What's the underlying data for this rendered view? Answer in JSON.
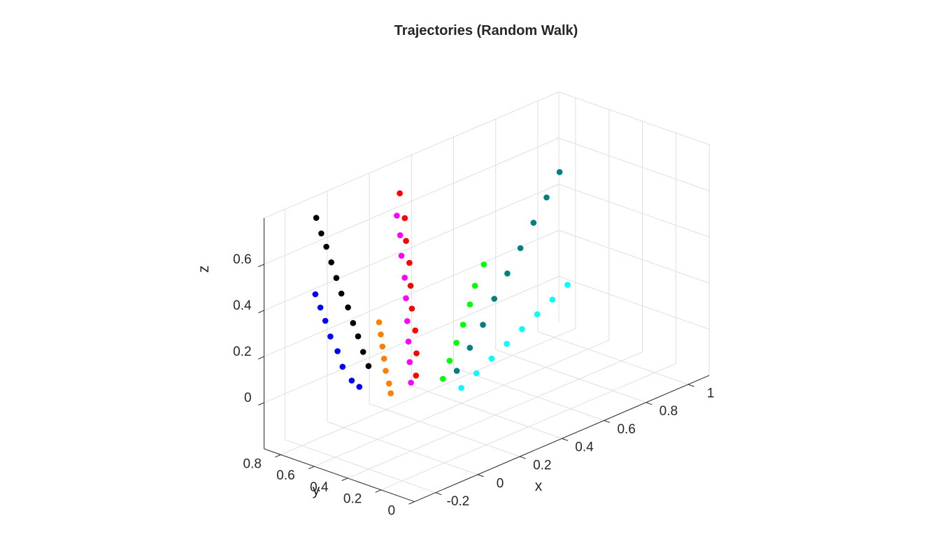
{
  "chart_data": {
    "type": "scatter",
    "title": "Trajectories (Random Walk)",
    "xlabel": "x",
    "ylabel": "y",
    "zlabel": "z",
    "xlim": [
      -0.3,
      1.1
    ],
    "ylim": [
      0,
      0.9
    ],
    "zlim": [
      -0.2,
      0.8
    ],
    "xticks": [
      "-0.2",
      "0",
      "0.2",
      "0.4",
      "0.6",
      "0.8",
      "1"
    ],
    "yticks": [
      "0",
      "0.2",
      "0.4",
      "0.6",
      "0.8"
    ],
    "zticks": [
      "0",
      "0.2",
      "0.4",
      "0.6"
    ],
    "grid": true,
    "series": [
      {
        "color": "#000000",
        "points": [
          [
            -0.05,
            0.59,
            0.14
          ],
          [
            -0.06,
            0.61,
            0.2
          ],
          [
            -0.06,
            0.64,
            0.26
          ],
          [
            -0.06,
            0.67,
            0.31
          ],
          [
            -0.06,
            0.7,
            0.37
          ],
          [
            -0.06,
            0.74,
            0.42
          ],
          [
            -0.06,
            0.77,
            0.48
          ],
          [
            -0.06,
            0.8,
            0.54
          ],
          [
            -0.06,
            0.83,
            0.6
          ],
          [
            -0.06,
            0.86,
            0.65
          ],
          [
            -0.06,
            0.89,
            0.71
          ]
        ]
      },
      {
        "color": "#0000ff",
        "points": [
          [
            -0.07,
            0.62,
            0.05
          ],
          [
            -0.09,
            0.64,
            0.08
          ],
          [
            -0.11,
            0.67,
            0.14
          ],
          [
            -0.11,
            0.7,
            0.2
          ],
          [
            -0.12,
            0.73,
            0.26
          ],
          [
            -0.12,
            0.76,
            0.32
          ],
          [
            -0.12,
            0.79,
            0.37
          ],
          [
            -0.12,
            0.82,
            0.42
          ]
        ]
      },
      {
        "color": "#ff8000",
        "points": [
          [
            0.0,
            0.52,
            0.02
          ],
          [
            0.0,
            0.53,
            0.06
          ],
          [
            0.0,
            0.55,
            0.11
          ],
          [
            0.0,
            0.56,
            0.16
          ],
          [
            0.0,
            0.57,
            0.21
          ],
          [
            0.0,
            0.58,
            0.26
          ],
          [
            0.0,
            0.59,
            0.31
          ]
        ]
      },
      {
        "color": "#ff0000",
        "points": [
          [
            0.12,
            0.52,
            0.05
          ],
          [
            0.13,
            0.53,
            0.14
          ],
          [
            0.14,
            0.55,
            0.23
          ],
          [
            0.14,
            0.57,
            0.32
          ],
          [
            0.15,
            0.59,
            0.41
          ],
          [
            0.16,
            0.61,
            0.5
          ],
          [
            0.16,
            0.63,
            0.59
          ],
          [
            0.17,
            0.65,
            0.68
          ],
          [
            0.17,
            0.68,
            0.78
          ]
        ]
      },
      {
        "color": "#ff00ff",
        "points": [
          [
            0.08,
            0.5,
            0.04
          ],
          [
            0.09,
            0.52,
            0.12
          ],
          [
            0.1,
            0.54,
            0.2
          ],
          [
            0.11,
            0.56,
            0.28
          ],
          [
            0.12,
            0.58,
            0.37
          ],
          [
            0.13,
            0.6,
            0.45
          ],
          [
            0.13,
            0.62,
            0.54
          ],
          [
            0.14,
            0.64,
            0.62
          ],
          [
            0.14,
            0.66,
            0.7
          ]
        ]
      },
      {
        "color": "#00ff00",
        "points": [
          [
            0.2,
            0.46,
            0.02
          ],
          [
            0.24,
            0.47,
            0.08
          ],
          [
            0.28,
            0.48,
            0.14
          ],
          [
            0.32,
            0.49,
            0.2
          ],
          [
            0.36,
            0.5,
            0.27
          ],
          [
            0.4,
            0.52,
            0.33
          ],
          [
            0.45,
            0.53,
            0.4
          ]
        ]
      },
      {
        "color": "#007f7f",
        "points": [
          [
            0.25,
            0.44,
            0.04
          ],
          [
            0.32,
            0.45,
            0.11
          ],
          [
            0.39,
            0.46,
            0.18
          ],
          [
            0.46,
            0.48,
            0.26
          ],
          [
            0.53,
            0.49,
            0.34
          ],
          [
            0.6,
            0.5,
            0.42
          ],
          [
            0.67,
            0.51,
            0.5
          ],
          [
            0.74,
            0.52,
            0.58
          ],
          [
            0.81,
            0.53,
            0.66
          ]
        ]
      },
      {
        "color": "#00ffff",
        "points": [
          [
            0.24,
            0.4,
            -0.02
          ],
          [
            0.32,
            0.41,
            0.01
          ],
          [
            0.4,
            0.42,
            0.04
          ],
          [
            0.48,
            0.43,
            0.07
          ],
          [
            0.56,
            0.44,
            0.1
          ],
          [
            0.64,
            0.45,
            0.13
          ],
          [
            0.72,
            0.46,
            0.16
          ],
          [
            0.8,
            0.47,
            0.19
          ]
        ]
      }
    ]
  }
}
